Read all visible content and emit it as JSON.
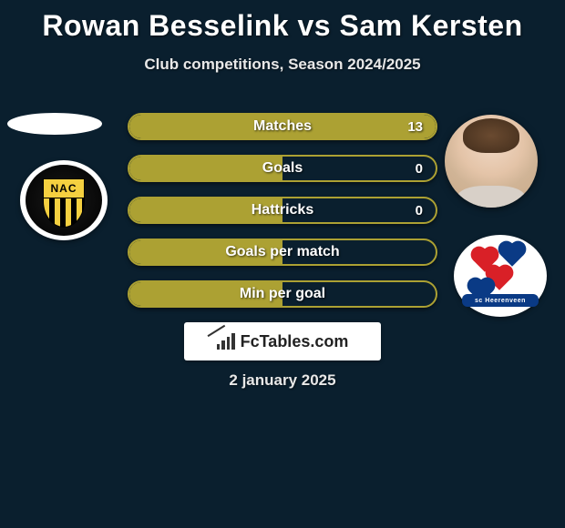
{
  "title": "Rowan Besselink vs Sam Kersten",
  "subtitle": "Club competitions, Season 2024/2025",
  "date": "2 january 2025",
  "branding": {
    "text": "FcTables.com"
  },
  "left_club_abbr": "NAC",
  "right_club_text": "sc Heerenveen",
  "colors": {
    "background": "#0a1f2e",
    "bar_fill": "#aca133",
    "bar_border": "#aca133",
    "text": "#ffffff"
  },
  "bars": [
    {
      "label": "Matches",
      "value": "13",
      "fill_pct": 100
    },
    {
      "label": "Goals",
      "value": "0",
      "fill_pct": 50
    },
    {
      "label": "Hattricks",
      "value": "0",
      "fill_pct": 50
    },
    {
      "label": "Goals per match",
      "value": "",
      "fill_pct": 50
    },
    {
      "label": "Min per goal",
      "value": "",
      "fill_pct": 50
    }
  ]
}
